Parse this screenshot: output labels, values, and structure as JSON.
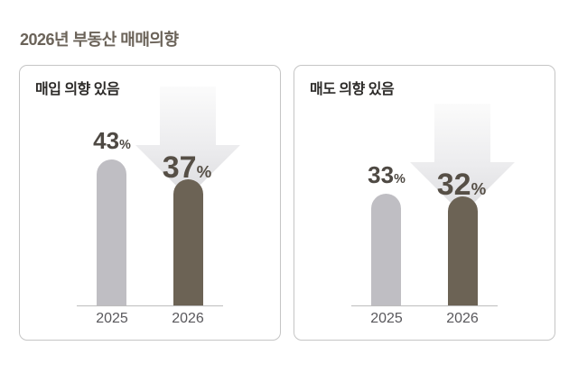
{
  "page_title": "2026년 부동산 매매의향",
  "unit": "%",
  "colors": {
    "title_text": "#6b6359",
    "panel_header_text": "#2d2b29",
    "panel_border": "#c5c5c5",
    "bar_2025": "#bfbec3",
    "bar_2026": "#6c6355",
    "value_label": "#4e4943",
    "big_value_label": "#564f46",
    "year_label": "#59585c",
    "axis_line": "#bdbdbd",
    "arrow_gradient_top": "#fafafa",
    "arrow_gradient_bottom": "#dcdcdf"
  },
  "chart_data": [
    {
      "type": "bar",
      "title": "매입 의향 있음",
      "categories": [
        "2025",
        "2026"
      ],
      "values": [
        43,
        37
      ],
      "value_labels": [
        "43%",
        "37%"
      ],
      "unit": "%",
      "ylim": [
        0,
        50
      ],
      "annotation": "large downward gradient arrow behind 2026 bar indicating decrease vs 2025",
      "legend": "none",
      "grid": "off"
    },
    {
      "type": "bar",
      "title": "매도 의향 있음",
      "categories": [
        "2025",
        "2026"
      ],
      "values": [
        33,
        32
      ],
      "value_labels": [
        "33%",
        "32%"
      ],
      "unit": "%",
      "ylim": [
        0,
        50
      ],
      "annotation": "large downward gradient arrow behind 2026 bar indicating decrease vs 2025",
      "legend": "none",
      "grid": "off"
    }
  ]
}
